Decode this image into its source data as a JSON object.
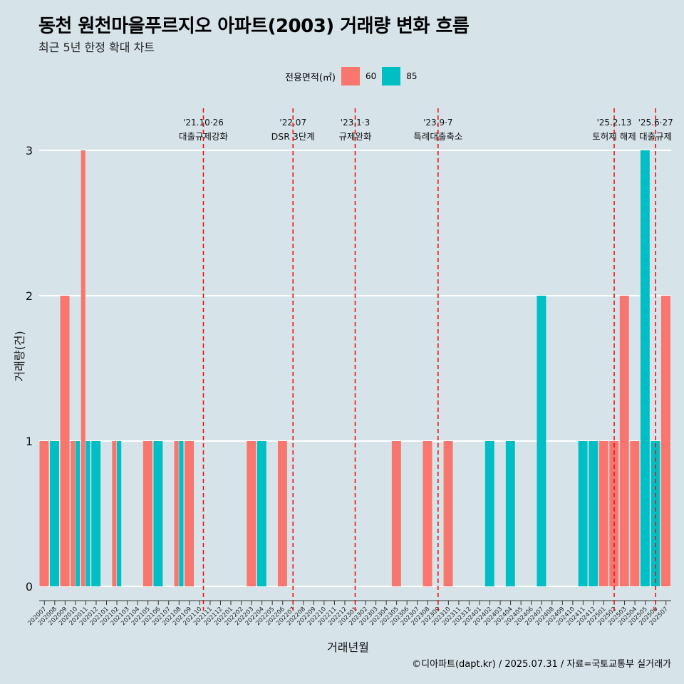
{
  "title": "동천 원천마을푸르지오 아파트(2003) 거래량 변화 흐름",
  "subtitle": "최근 5년 한정 확대 차트",
  "legend": {
    "title": "전용면적(㎡)",
    "items": [
      {
        "label": "60",
        "color": "#F8766D"
      },
      {
        "label": "85",
        "color": "#00BFC4"
      }
    ]
  },
  "caption": "©디아파트(dapt.kr) / 2025.07.31 / 자료=국토교통부 실거래가",
  "chart_data": {
    "type": "bar",
    "xlabel": "거래년월",
    "ylabel": "거래량(건)",
    "ylim": [
      0,
      3
    ],
    "yticks": [
      0,
      1,
      2,
      3
    ],
    "categories": [
      "202007",
      "202008",
      "202009",
      "202010",
      "202011",
      "202012",
      "202101",
      "202102",
      "202103",
      "202104",
      "202105",
      "202106",
      "202107",
      "202108",
      "202109",
      "202110",
      "202111",
      "202112",
      "202201",
      "202202",
      "202203",
      "202204",
      "202205",
      "202206",
      "202207",
      "202208",
      "202209",
      "202210",
      "202211",
      "202212",
      "202301",
      "202302",
      "202303",
      "202304",
      "202305",
      "202306",
      "202307",
      "202308",
      "202309",
      "202310",
      "202311",
      "202312",
      "202401",
      "202402",
      "202403",
      "202404",
      "202405",
      "202406",
      "202407",
      "202408",
      "202409",
      "202410",
      "202411",
      "202412",
      "202501",
      "202502",
      "202503",
      "202504",
      "202505",
      "202506",
      "202507"
    ],
    "series": [
      {
        "name": "60",
        "color": "#F8766D",
        "values": [
          1,
          0,
          2,
          1,
          3,
          0,
          0,
          1,
          0,
          0,
          1,
          0,
          0,
          1,
          1,
          0,
          0,
          0,
          0,
          0,
          1,
          0,
          0,
          1,
          0,
          0,
          0,
          0,
          0,
          0,
          0,
          0,
          0,
          0,
          1,
          0,
          0,
          1,
          0,
          1,
          0,
          0,
          0,
          0,
          0,
          0,
          0,
          0,
          0,
          0,
          0,
          0,
          0,
          0,
          1,
          1,
          2,
          1,
          0,
          0,
          2
        ]
      },
      {
        "name": "85",
        "color": "#00BFC4",
        "values": [
          0,
          1,
          0,
          1,
          1,
          1,
          0,
          1,
          0,
          0,
          0,
          1,
          0,
          1,
          0,
          0,
          0,
          0,
          0,
          0,
          0,
          1,
          0,
          0,
          0,
          0,
          0,
          0,
          0,
          0,
          0,
          0,
          0,
          0,
          0,
          0,
          0,
          0,
          0,
          0,
          0,
          0,
          0,
          1,
          0,
          1,
          0,
          0,
          2,
          0,
          0,
          0,
          1,
          1,
          0,
          0,
          0,
          0,
          3,
          1,
          0
        ]
      }
    ],
    "annotations": [
      {
        "date": "'21.10·26",
        "label": "대출규제강화",
        "at": "202110",
        "offset": 0.35
      },
      {
        "date": "'22.07",
        "label": "DSR 3단계",
        "at": "202207",
        "offset": 0.0
      },
      {
        "date": "'23.1·3",
        "label": "규제완화",
        "at": "202301",
        "offset": 0.0
      },
      {
        "date": "'23.9·7",
        "label": "특례대출축소",
        "at": "202309",
        "offset": 0.0
      },
      {
        "date": "'25.2.13",
        "label": "토허제 해제",
        "at": "202502",
        "offset": 0.0
      },
      {
        "date": "'25.6·27",
        "label": "대출규제",
        "at": "202506",
        "offset": 0.0
      }
    ]
  }
}
